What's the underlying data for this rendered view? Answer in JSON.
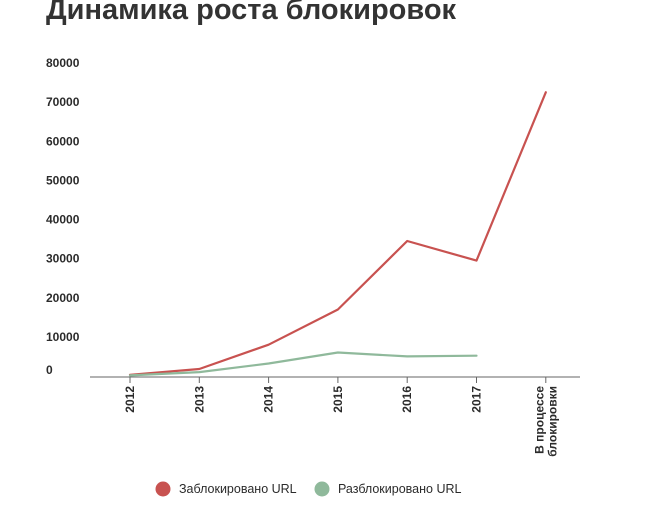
{
  "chart_data": {
    "type": "line",
    "title": "Динамика роста блокировок",
    "categories": [
      "2012",
      "2013",
      "2014",
      "2015",
      "2016",
      "2017",
      "В процессе блокировки"
    ],
    "series": [
      {
        "name": "Заблокировано URL",
        "color": "#c85250",
        "values": [
          300,
          1800,
          8000,
          17000,
          34500,
          29500,
          72500
        ]
      },
      {
        "name": "Разблокировано URL",
        "color": "#8fb99b",
        "values": [
          150,
          1000,
          3200,
          6000,
          5000,
          5200,
          null
        ]
      }
    ],
    "yticks": [
      0,
      10000,
      20000,
      30000,
      40000,
      50000,
      60000,
      70000,
      80000
    ],
    "ylim": [
      0,
      80000
    ],
    "xlabel": "",
    "ylabel": "",
    "grid": false,
    "legend": "bottom"
  }
}
